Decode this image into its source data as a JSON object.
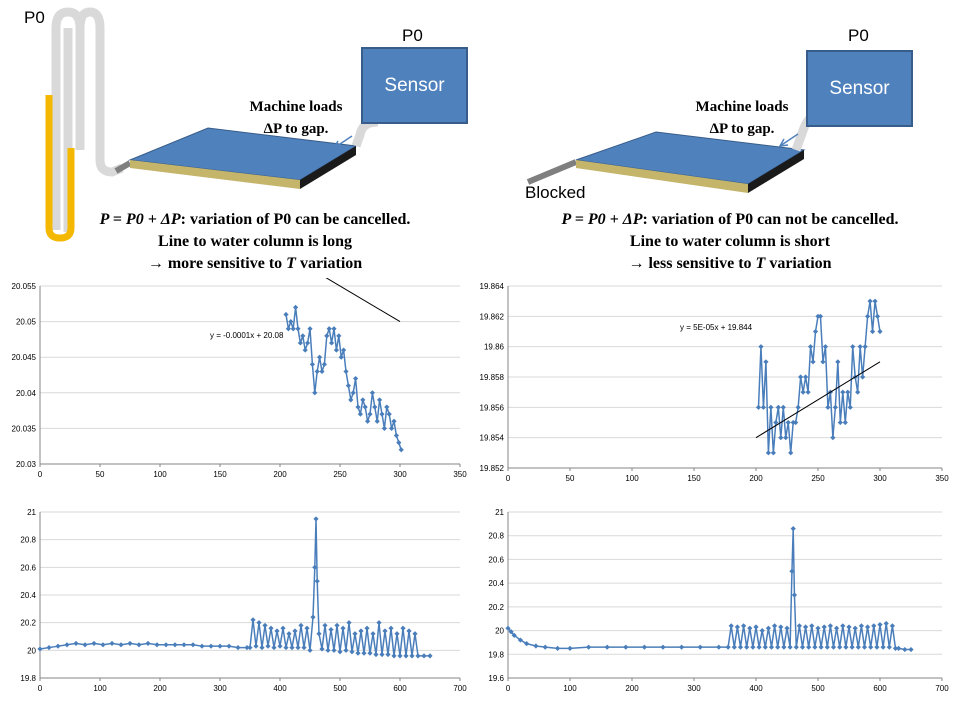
{
  "diagram": {
    "left": {
      "p0_tube": "P0",
      "p0_sensor": "P0",
      "sensor": "Sensor",
      "machine_line1": "Machine loads",
      "machine_line2": "ΔP to gap.",
      "caption_line1_rest": ": variation of P0 can be cancelled.",
      "caption_line2": "Line to water column is long",
      "caption_line3_pre": "→ more sensitive to ",
      "caption_line3_post": " variation"
    },
    "right": {
      "p0_sensor": "P0",
      "sensor": "Sensor",
      "blocked": "Blocked",
      "machine_line1": "Machine loads",
      "machine_line2": "ΔP to gap.",
      "caption_line1_rest": ": variation of P0 can not be cancelled.",
      "caption_line2": "Line to water column is short",
      "caption_line3_pre": "→ less sensitive to ",
      "caption_line3_post": " variation"
    },
    "equation": "P = P0 + ΔP",
    "colors": {
      "water": "#f5b800",
      "tube": "#d9d9d9",
      "plate_top": "#4f81bd",
      "sensor": "#4f81bd",
      "series": "#4a7ebb"
    }
  },
  "chart_data": [
    {
      "type": "scatter",
      "name": "top-left",
      "xlim": [
        0,
        350
      ],
      "ylim": [
        20.03,
        20.055
      ],
      "xticks": [
        "0",
        "50",
        "100",
        "150",
        "200",
        "250",
        "300",
        "350"
      ],
      "yticks": [
        "20.03",
        "20.035",
        "20.04",
        "20.045",
        "20.05",
        "20.055"
      ],
      "annotation": "y = -0.0001x  + 20.08",
      "trendline": {
        "slope": -0.0001,
        "intercept": 20.08,
        "x_range": [
          205,
          300
        ]
      },
      "x": [
        205,
        207,
        209,
        211,
        213,
        215,
        217,
        219,
        221,
        223,
        225,
        227,
        229,
        231,
        233,
        235,
        237,
        239,
        241,
        243,
        245,
        247,
        249,
        251,
        253,
        255,
        257,
        259,
        261,
        263,
        265,
        267,
        269,
        271,
        273,
        275,
        277,
        279,
        281,
        283,
        285,
        287,
        289,
        291,
        293,
        295,
        297,
        299,
        301
      ],
      "y": [
        20.051,
        20.049,
        20.05,
        20.049,
        20.052,
        20.049,
        20.047,
        20.048,
        20.046,
        20.047,
        20.049,
        20.044,
        20.04,
        20.043,
        20.045,
        20.043,
        20.044,
        20.048,
        20.049,
        20.047,
        20.049,
        20.046,
        20.048,
        20.045,
        20.046,
        20.043,
        20.041,
        20.039,
        20.04,
        20.042,
        20.038,
        20.037,
        20.039,
        20.038,
        20.036,
        20.037,
        20.04,
        20.038,
        20.036,
        20.039,
        20.037,
        20.035,
        20.038,
        20.037,
        20.035,
        20.036,
        20.034,
        20.033,
        20.032
      ]
    },
    {
      "type": "scatter",
      "name": "top-right",
      "xlim": [
        0,
        350
      ],
      "ylim": [
        19.852,
        19.864
      ],
      "xticks": [
        "0",
        "50",
        "100",
        "150",
        "200",
        "250",
        "300",
        "350"
      ],
      "yticks": [
        "19.852",
        "19.854",
        "19.856",
        "19.858",
        "19.86",
        "19.862",
        "19.864"
      ],
      "annotation": "y = 5E-05x  + 19.844",
      "trendline": {
        "slope": 5e-05,
        "intercept": 19.844,
        "x_range": [
          200,
          300
        ]
      },
      "x": [
        202,
        204,
        206,
        208,
        210,
        212,
        214,
        216,
        218,
        220,
        222,
        224,
        226,
        228,
        230,
        232,
        234,
        236,
        238,
        240,
        242,
        244,
        246,
        248,
        250,
        252,
        254,
        256,
        258,
        260,
        262,
        264,
        266,
        268,
        270,
        272,
        274,
        276,
        278,
        280,
        282,
        284,
        286,
        288,
        290,
        292,
        294,
        296,
        298,
        300
      ],
      "y": [
        19.856,
        19.86,
        19.856,
        19.859,
        19.853,
        19.856,
        19.853,
        19.855,
        19.856,
        19.854,
        19.856,
        19.854,
        19.855,
        19.853,
        19.855,
        19.855,
        19.856,
        19.858,
        19.857,
        19.858,
        19.857,
        19.86,
        19.859,
        19.861,
        19.862,
        19.862,
        19.859,
        19.86,
        19.856,
        19.857,
        19.854,
        19.856,
        19.859,
        19.855,
        19.857,
        19.855,
        19.857,
        19.856,
        19.86,
        19.858,
        19.857,
        19.86,
        19.858,
        19.86,
        19.862,
        19.863,
        19.861,
        19.863,
        19.862,
        19.861
      ]
    },
    {
      "type": "line",
      "name": "bottom-left",
      "xlim": [
        0,
        700
      ],
      "ylim": [
        19.8,
        21
      ],
      "xticks": [
        "0",
        "100",
        "200",
        "300",
        "400",
        "500",
        "600",
        "700"
      ],
      "yticks": [
        "19.8",
        "20",
        "20.2",
        "20.4",
        "20.6",
        "20.8",
        "21"
      ],
      "x": [
        0,
        15,
        30,
        45,
        60,
        75,
        90,
        105,
        120,
        135,
        150,
        165,
        180,
        195,
        210,
        225,
        240,
        255,
        270,
        285,
        300,
        315,
        330,
        345,
        350,
        355,
        360,
        365,
        370,
        375,
        380,
        385,
        390,
        395,
        400,
        405,
        410,
        415,
        420,
        425,
        430,
        435,
        440,
        445,
        450,
        455,
        458,
        460,
        462,
        465,
        470,
        475,
        480,
        485,
        490,
        495,
        500,
        505,
        510,
        515,
        520,
        525,
        530,
        535,
        540,
        545,
        550,
        555,
        560,
        565,
        570,
        575,
        580,
        585,
        590,
        595,
        600,
        605,
        610,
        615,
        620,
        625,
        630,
        640,
        650
      ],
      "y": [
        20.01,
        20.02,
        20.03,
        20.04,
        20.05,
        20.04,
        20.05,
        20.04,
        20.05,
        20.04,
        20.05,
        20.04,
        20.05,
        20.04,
        20.04,
        20.04,
        20.04,
        20.04,
        20.03,
        20.03,
        20.03,
        20.03,
        20.02,
        20.02,
        20.02,
        20.22,
        20.03,
        20.2,
        20.02,
        20.18,
        20.03,
        20.16,
        20.02,
        20.14,
        20.03,
        20.16,
        20.02,
        20.12,
        20.02,
        20.14,
        20.02,
        20.18,
        20.02,
        20.16,
        20.0,
        20.24,
        20.6,
        20.95,
        20.5,
        20.12,
        20.01,
        20.18,
        20.0,
        20.15,
        20.0,
        20.18,
        19.99,
        20.16,
        20.0,
        20.2,
        19.99,
        20.12,
        19.98,
        20.14,
        19.98,
        20.16,
        19.98,
        20.12,
        19.97,
        20.2,
        19.97,
        20.14,
        19.97,
        20.16,
        19.96,
        20.12,
        19.96,
        20.16,
        19.96,
        20.14,
        19.96,
        20.12,
        19.96,
        19.96,
        19.96
      ]
    },
    {
      "type": "line",
      "name": "bottom-right",
      "xlim": [
        0,
        700
      ],
      "ylim": [
        19.6,
        21
      ],
      "xticks": [
        "0",
        "100",
        "200",
        "300",
        "400",
        "500",
        "600",
        "700"
      ],
      "yticks": [
        "19.6",
        "19.8",
        "20",
        "20.2",
        "20.4",
        "20.6",
        "20.8",
        "21"
      ],
      "x": [
        0,
        5,
        10,
        20,
        30,
        45,
        60,
        80,
        100,
        130,
        160,
        190,
        220,
        250,
        280,
        310,
        340,
        355,
        360,
        365,
        370,
        375,
        380,
        385,
        390,
        395,
        400,
        405,
        410,
        415,
        420,
        425,
        430,
        435,
        440,
        445,
        450,
        455,
        458,
        460,
        462,
        465,
        470,
        475,
        480,
        485,
        490,
        495,
        500,
        505,
        510,
        515,
        520,
        525,
        530,
        535,
        540,
        545,
        550,
        555,
        560,
        565,
        570,
        575,
        580,
        585,
        590,
        595,
        600,
        605,
        610,
        615,
        620,
        625,
        630,
        640,
        650
      ],
      "y": [
        20.02,
        19.99,
        19.96,
        19.92,
        19.89,
        19.87,
        19.86,
        19.85,
        19.85,
        19.86,
        19.86,
        19.86,
        19.86,
        19.86,
        19.86,
        19.86,
        19.86,
        19.86,
        20.04,
        19.86,
        20.03,
        19.86,
        20.04,
        19.86,
        20.02,
        19.86,
        20.03,
        19.86,
        20.0,
        19.86,
        20.02,
        19.86,
        20.04,
        19.86,
        20.03,
        19.86,
        20.02,
        19.86,
        20.5,
        20.86,
        20.3,
        19.86,
        20.04,
        19.86,
        20.03,
        19.86,
        20.04,
        19.86,
        20.02,
        19.86,
        20.03,
        19.86,
        20.04,
        19.86,
        20.02,
        19.86,
        20.04,
        19.86,
        20.03,
        19.86,
        20.02,
        19.86,
        20.04,
        19.86,
        20.03,
        19.86,
        20.04,
        19.86,
        20.05,
        19.86,
        20.06,
        19.86,
        20.04,
        19.85,
        19.85,
        19.84,
        19.84
      ]
    }
  ]
}
